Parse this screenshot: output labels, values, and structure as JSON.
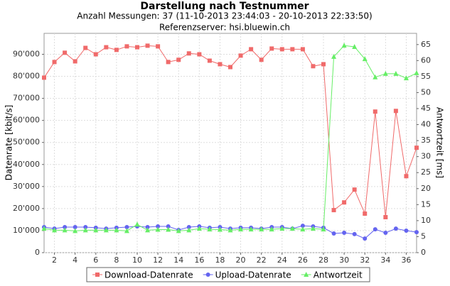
{
  "chart_data": {
    "type": "line",
    "title": "Darstellung nach Testnummer",
    "subtitle": "Anzahl Messungen: 37 (11-10-2013 23:44:03 - 20-10-2013 22:33:50)",
    "subtitle2": "Referenzserver: hsi.bluewin.ch",
    "y_label": "Datenrate [kbit/s]",
    "y2_label": "Antwortzeit [ms]",
    "x": [
      1,
      2,
      3,
      4,
      5,
      6,
      7,
      8,
      9,
      10,
      11,
      12,
      13,
      14,
      15,
      16,
      17,
      18,
      19,
      20,
      21,
      22,
      23,
      24,
      25,
      26,
      27,
      28,
      29,
      30,
      31,
      32,
      33,
      34,
      35,
      36,
      37
    ],
    "xlim": [
      1,
      37
    ],
    "xticks": [
      2,
      4,
      6,
      8,
      10,
      12,
      14,
      16,
      18,
      20,
      22,
      24,
      26,
      28,
      30,
      32,
      34,
      36
    ],
    "ylim": [
      0,
      99500
    ],
    "yticks": [
      0,
      {
        "value": 10000,
        "label": "10'000"
      },
      {
        "value": 20000,
        "label": "20'000"
      },
      {
        "value": 30000,
        "label": "30'000"
      },
      {
        "value": 40000,
        "label": "40'000"
      },
      {
        "value": 50000,
        "label": "50'000"
      },
      {
        "value": 60000,
        "label": "60'000"
      },
      {
        "value": 70000,
        "label": "70'000"
      },
      {
        "value": 80000,
        "label": "80'000"
      },
      {
        "value": 90000,
        "label": "90'000"
      }
    ],
    "y2lim": [
      0,
      68.5
    ],
    "y2ticks": [
      0,
      5,
      10,
      15,
      20,
      25,
      30,
      35,
      40,
      45,
      50,
      55,
      60,
      65
    ],
    "grid": true,
    "legend": "bottom",
    "series": [
      {
        "name": "Download-Datenrate",
        "color": "#f06a6a",
        "marker": "square",
        "values": [
          79400,
          86500,
          90700,
          86800,
          92900,
          90000,
          93200,
          92000,
          93600,
          93200,
          93900,
          93600,
          86500,
          87500,
          90400,
          90000,
          87100,
          85500,
          84200,
          89400,
          92300,
          87500,
          92600,
          92300,
          92300,
          92300,
          84600,
          85500,
          19300,
          22800,
          28600,
          17700,
          64000,
          16100,
          64300,
          34700,
          47600
        ]
      },
      {
        "name": "Upload-Datenrate",
        "color": "#6464f0",
        "marker": "circle",
        "values": [
          11600,
          10900,
          11600,
          11600,
          11600,
          11300,
          10900,
          11300,
          11600,
          11900,
          11600,
          11900,
          11900,
          10300,
          11600,
          11900,
          11300,
          11600,
          10900,
          11300,
          11300,
          10900,
          11600,
          11600,
          10900,
          12200,
          11900,
          11300,
          8700,
          9000,
          8400,
          6400,
          10600,
          9000,
          10900,
          10000,
          9300
        ]
      },
      {
        "name": "Antwortzeit",
        "color": "#66ee66",
        "marker": "triangle",
        "axis": "y2",
        "values": [
          7.5,
          7,
          7,
          6.8,
          7,
          7,
          7,
          7,
          6.8,
          8.8,
          7,
          7.2,
          7.2,
          6.8,
          7,
          7.5,
          7.3,
          7.2,
          7,
          7.3,
          7.3,
          7.3,
          7.3,
          7.5,
          7.5,
          7.3,
          7.5,
          7.3,
          61.2,
          64.7,
          64.3,
          60.5,
          54.8,
          55.9,
          55.9,
          54.5,
          56.1
        ]
      }
    ]
  }
}
